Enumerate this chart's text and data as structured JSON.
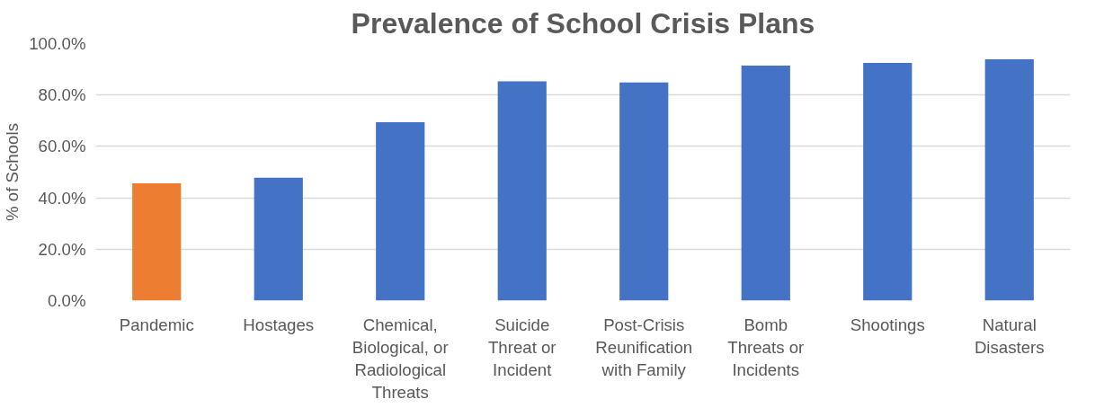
{
  "chart_data": {
    "type": "bar",
    "title": "Prevalence of School Crisis Plans",
    "ylabel": "% of Schools",
    "categories": [
      "Pandemic",
      "Hostages",
      "Chemical,\nBiological, or\nRadiological\nThreats",
      "Suicide\nThreat or\nIncident",
      "Post-Crisis\nReunification\nwith Family",
      "Bomb\nThreats or\nIncidents",
      "Shootings",
      "Natural\nDisasters"
    ],
    "values": [
      45.6,
      47.8,
      69.4,
      85.3,
      84.9,
      91.4,
      92.5,
      93.9
    ],
    "colors": [
      "#ed7d31",
      "#4472c4",
      "#4472c4",
      "#4472c4",
      "#4472c4",
      "#4472c4",
      "#4472c4",
      "#4472c4"
    ],
    "ylim": [
      0,
      100
    ],
    "yticks": [
      {
        "value": 0,
        "label": "0.0%"
      },
      {
        "value": 20,
        "label": "20.0%"
      },
      {
        "value": 40,
        "label": "40.0%"
      },
      {
        "value": 60,
        "label": "60.0%"
      },
      {
        "value": 80,
        "label": "80.0%"
      },
      {
        "value": 100,
        "label": "100.0%"
      }
    ],
    "grid": "y"
  }
}
